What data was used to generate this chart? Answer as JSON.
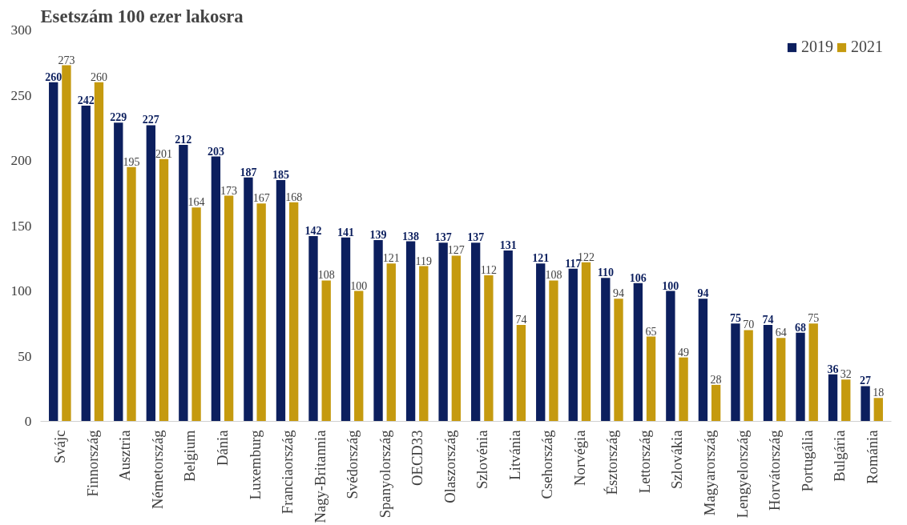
{
  "chart_data": {
    "type": "bar",
    "title": "Esetszám 100 ezer lakosra",
    "categories": [
      "Svájc",
      "Finnország",
      "Ausztria",
      "Németország",
      "Belgium",
      "Dánia",
      "Luxemburg",
      "Franciaország",
      "Nagy-Britannia",
      "Svédország",
      "Spanyolország",
      "OECD33",
      "Olaszország",
      "Szlovénia",
      "Litvánia",
      "Csehország",
      "Norvégia",
      "Észtország",
      "Lettország",
      "Szlovákia",
      "Magyarország",
      "Lengyelország",
      "Horvátország",
      "Portugália",
      "Bulgária",
      "Románia"
    ],
    "series": [
      {
        "name": "2019",
        "color": "#0c1f5e",
        "values": [
          260,
          242,
          229,
          227,
          212,
          203,
          187,
          185,
          142,
          141,
          139,
          138,
          137,
          137,
          131,
          121,
          117,
          110,
          106,
          100,
          94,
          75,
          74,
          68,
          36,
          27
        ]
      },
      {
        "name": "2021",
        "color": "#c59a0f",
        "values": [
          273,
          260,
          195,
          201,
          164,
          173,
          167,
          168,
          108,
          100,
          121,
          119,
          127,
          112,
          74,
          108,
          122,
          94,
          65,
          49,
          28,
          70,
          64,
          75,
          32,
          18
        ]
      }
    ],
    "ylim": [
      0,
      300
    ],
    "yticks": [
      0,
      50,
      100,
      150,
      200,
      250,
      300
    ],
    "grid": false,
    "legend": "top right",
    "data_labels": true
  }
}
